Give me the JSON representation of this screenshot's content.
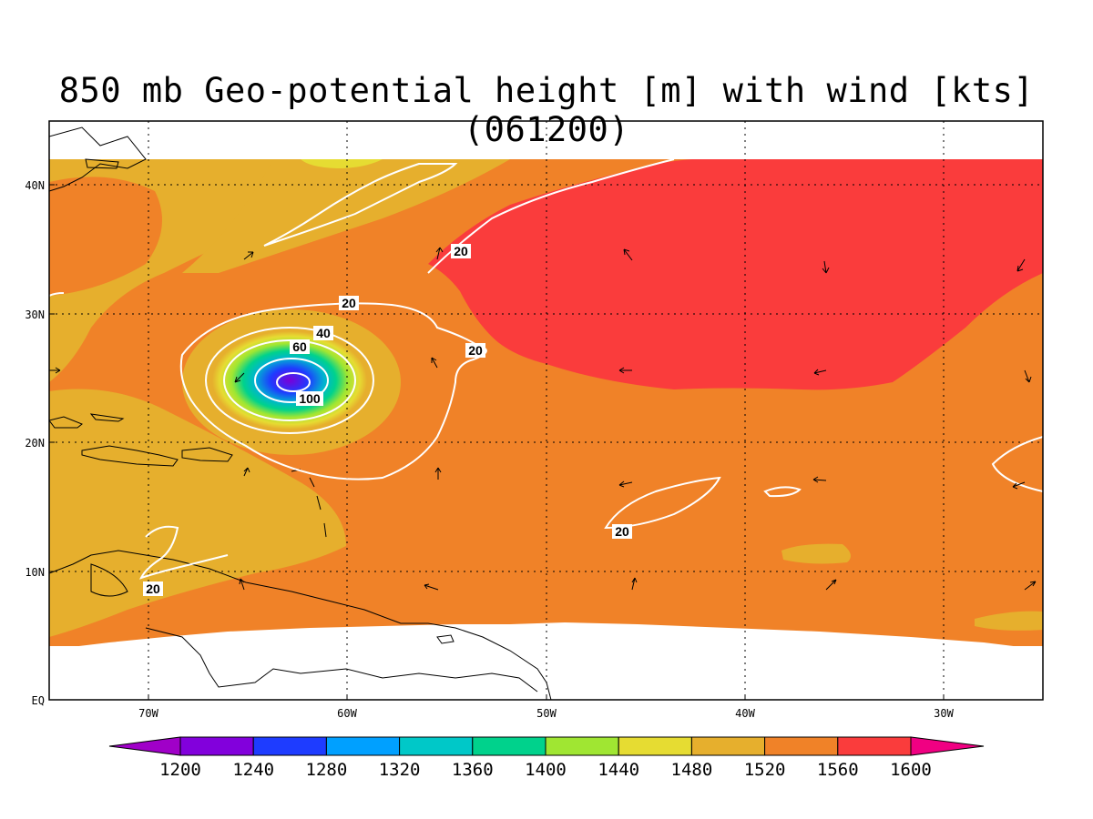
{
  "title": "850 mb Geo-potential height [m] with wind [kts] (061200)",
  "lat_labels": [
    "40N",
    "30N",
    "20N",
    "10N",
    "EQ"
  ],
  "lon_labels": [
    "70W",
    "60W",
    "50W",
    "40W",
    "30W"
  ],
  "contour_labels": [
    "20",
    "20",
    "20",
    "20",
    "20",
    "40",
    "60",
    "100"
  ],
  "colorbar": {
    "levels": [
      "1200",
      "1240",
      "1280",
      "1320",
      "1360",
      "1400",
      "1440",
      "1480",
      "1520",
      "1560",
      "1600"
    ],
    "colors": [
      "#a000c8",
      "#8200dc",
      "#1e3cff",
      "#00a0ff",
      "#00c8c8",
      "#00d28c",
      "#a0e632",
      "#e6dc32",
      "#e6af2d",
      "#f08228",
      "#fa3c3c",
      "#f00082"
    ]
  },
  "wind_contours_kts": [
    "20",
    "40",
    "60",
    "80",
    "100"
  ]
}
